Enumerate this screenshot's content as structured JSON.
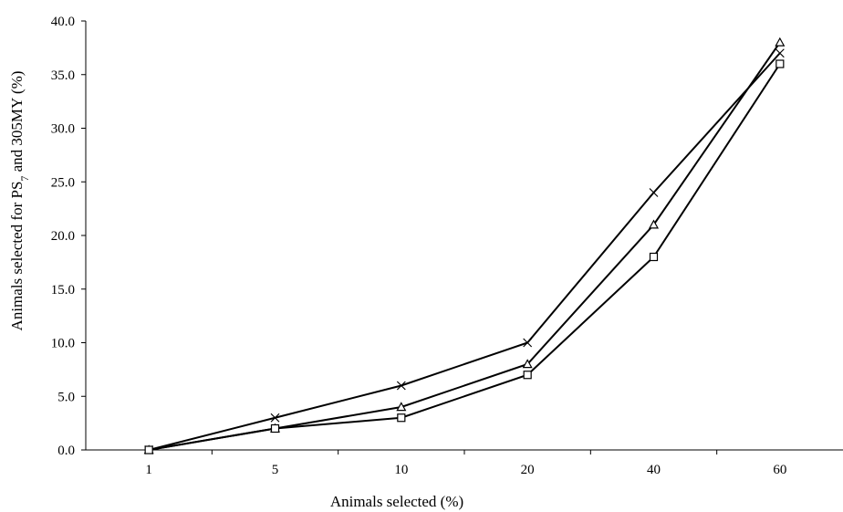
{
  "chart_data": {
    "type": "line",
    "categories": [
      "1",
      "5",
      "10",
      "20",
      "40",
      "60"
    ],
    "series": [
      {
        "marker": "x",
        "values": [
          0.0,
          3.0,
          6.0,
          10.0,
          24.0,
          37.0
        ]
      },
      {
        "marker": "triangle",
        "values": [
          0.0,
          2.0,
          4.0,
          8.0,
          21.0,
          38.0
        ]
      },
      {
        "marker": "square",
        "values": [
          0.0,
          2.0,
          3.0,
          7.0,
          18.0,
          36.0
        ]
      }
    ],
    "xlabel": "Animals selected (%)",
    "ylabel": {
      "prefix": "Animals selected for  PS",
      "subscript": "7",
      "suffix": " and 305MY (%)"
    },
    "ylim": [
      0,
      40
    ],
    "yticks": [
      "0.0",
      "5.0",
      "10.0",
      "15.0",
      "20.0",
      "25.0",
      "30.0",
      "35.0",
      "40.0"
    ],
    "grid": false,
    "legend": "none",
    "line_color": "#000000"
  }
}
